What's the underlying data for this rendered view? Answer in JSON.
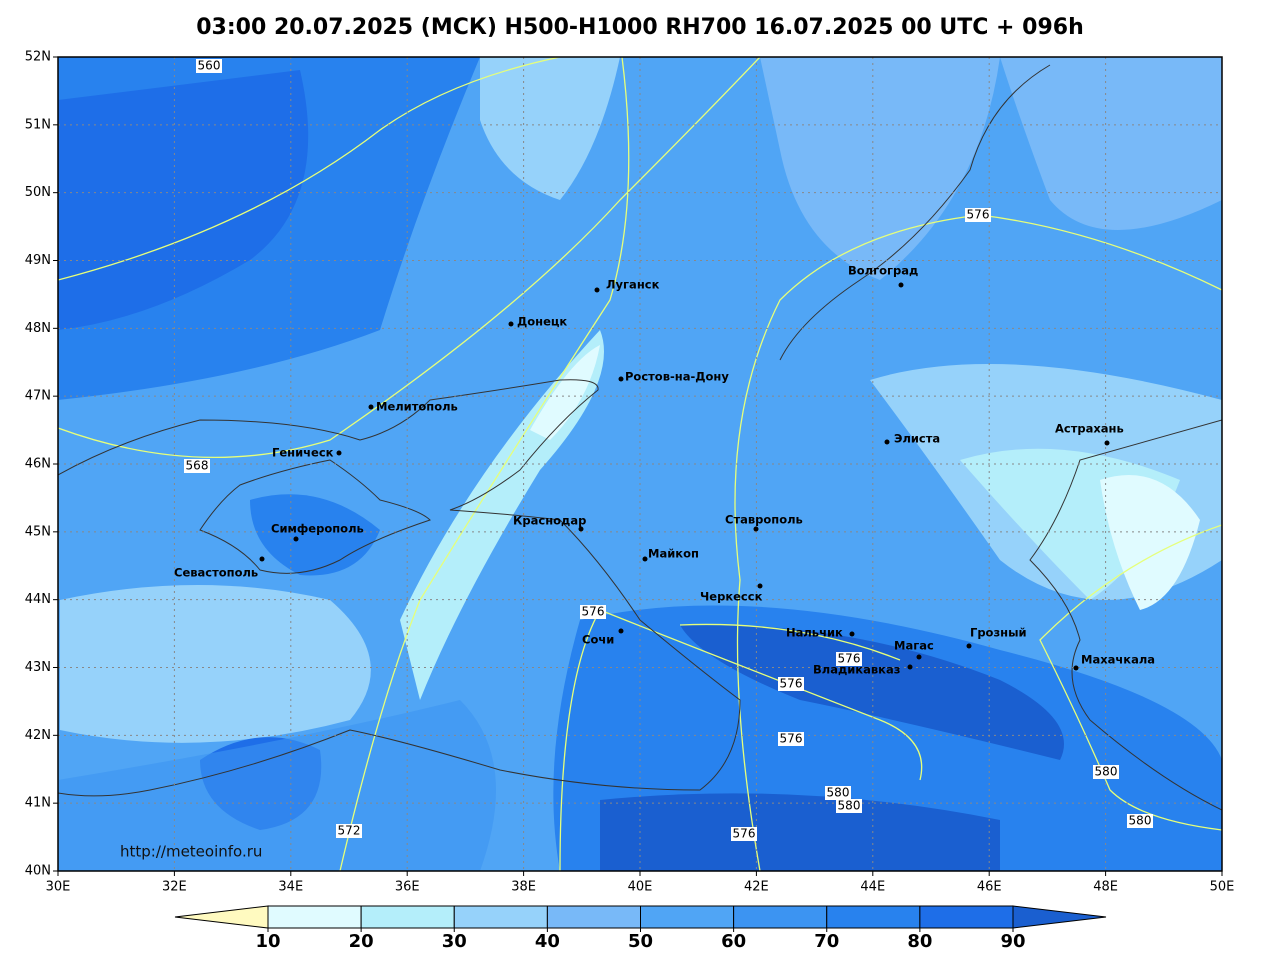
{
  "title": "03:00 20.07.2025 (МСК) H500-H1000 RH700 16.07.2025 00 UTC + 096h",
  "map": {
    "lon_ticks": [
      {
        "value": 30,
        "label": "30E"
      },
      {
        "value": 32,
        "label": "32E"
      },
      {
        "value": 34,
        "label": "34E"
      },
      {
        "value": 36,
        "label": "36E"
      },
      {
        "value": 38,
        "label": "38E"
      },
      {
        "value": 40,
        "label": "40E"
      },
      {
        "value": 42,
        "label": "42E"
      },
      {
        "value": 44,
        "label": "44E"
      },
      {
        "value": 46,
        "label": "46E"
      },
      {
        "value": 48,
        "label": "48E"
      },
      {
        "value": 50,
        "label": "50E"
      }
    ],
    "lat_ticks": [
      {
        "value": 52,
        "label": "52N"
      },
      {
        "value": 51,
        "label": "51N"
      },
      {
        "value": 50,
        "label": "50N"
      },
      {
        "value": 49,
        "label": "49N"
      },
      {
        "value": 48,
        "label": "48N"
      },
      {
        "value": 47,
        "label": "47N"
      },
      {
        "value": 46,
        "label": "46N"
      },
      {
        "value": 45,
        "label": "45N"
      },
      {
        "value": 44,
        "label": "44N"
      },
      {
        "value": 43,
        "label": "43N"
      },
      {
        "value": 42,
        "label": "42N"
      },
      {
        "value": 41,
        "label": "41N"
      },
      {
        "value": 40,
        "label": "40N"
      }
    ],
    "cities": [
      "Луганск",
      "Донецк",
      "Ростов-на-Дону",
      "Мелитополь",
      "Геническ",
      "Симферополь",
      "Севастополь",
      "Краснодар",
      "Майкоп",
      "Ставрополь",
      "Черкесск",
      "Сочи",
      "Нальчик",
      "Магас",
      "Владикавказ",
      "Грозный",
      "Махачкала",
      "Элиста",
      "Астрахань",
      "Волгоград"
    ],
    "contour_labels": [
      560,
      568,
      572,
      576,
      576,
      576,
      576,
      576,
      576,
      580,
      580,
      580,
      580
    ],
    "source": "http://meteoinfo.ru"
  },
  "colorbar": {
    "ticks": [
      10,
      20,
      30,
      40,
      50,
      60,
      70,
      80,
      90
    ],
    "colors": [
      "#fffac0",
      "#e0fbff",
      "#b4eefa",
      "#96d2fa",
      "#78b9f8",
      "#50a5f5",
      "#3c94f2",
      "#2882ee",
      "#1e6ee8",
      "#1a5fd0"
    ]
  }
}
